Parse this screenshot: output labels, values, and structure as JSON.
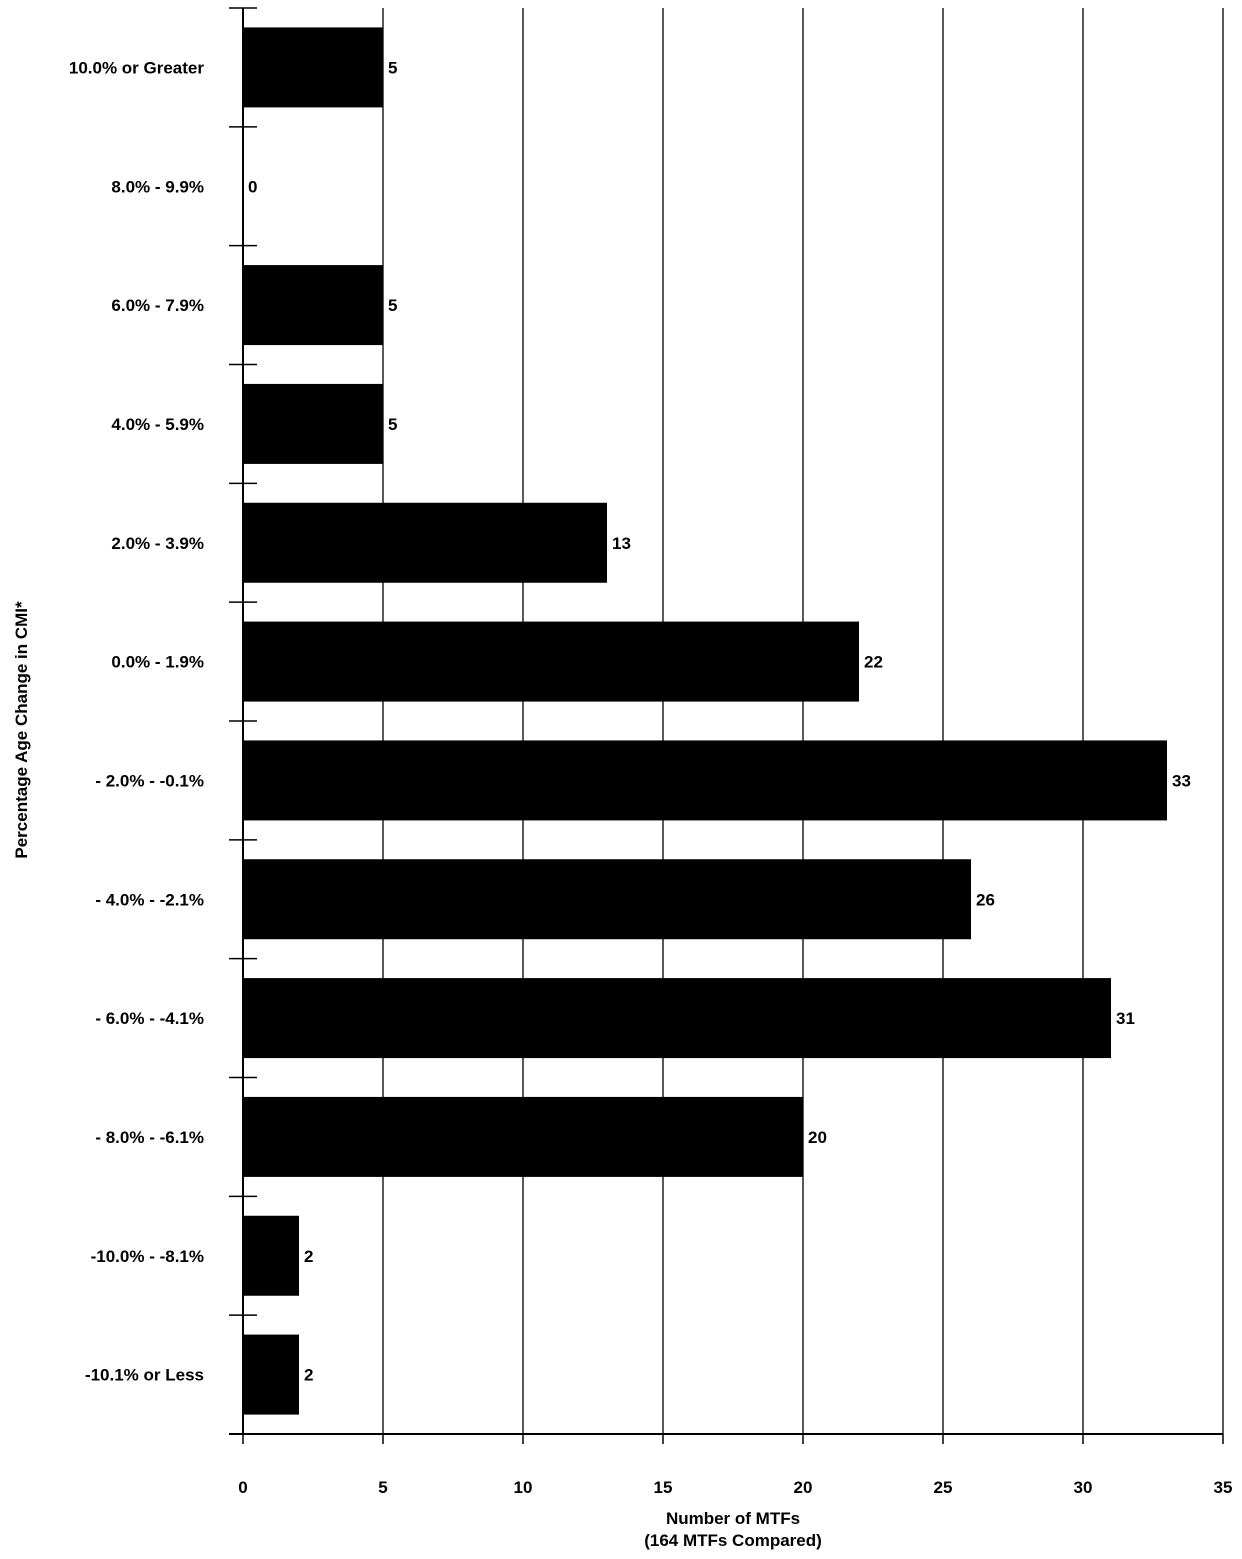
{
  "chart_data": {
    "type": "bar",
    "orientation": "horizontal",
    "categories": [
      "10.0% or Greater",
      "8.0% -  9.9%",
      "6.0% -  7.9%",
      "4.0% -  5.9%",
      "2.0% -  3.9%",
      "0.0% -  1.9%",
      "- 2.0% - -0.1%",
      "- 4.0% - -2.1%",
      "- 6.0% - -4.1%",
      "- 8.0% - -6.1%",
      "-10.0% - -8.1%",
      "-10.1% or Less"
    ],
    "values": [
      5,
      0,
      5,
      5,
      13,
      22,
      33,
      26,
      31,
      20,
      2,
      2
    ],
    "data_labels": [
      "5",
      "0",
      "5",
      "5",
      "13",
      "22",
      "33",
      "26",
      "31",
      "20",
      "2",
      "2"
    ],
    "xlim": [
      0,
      35
    ],
    "x_ticks": [
      0,
      5,
      10,
      15,
      20,
      25,
      30,
      35
    ],
    "x_tick_labels": [
      "0",
      "5",
      "10",
      "15",
      "20",
      "25",
      "30",
      "35"
    ],
    "xlabel": "Number of MTFs",
    "xlabel_sub": "(164 MTFs Compared)",
    "ylabel": "Percentage Age Change in CMI*",
    "title": "",
    "grid": "vertical",
    "bar_color": "#000000"
  }
}
